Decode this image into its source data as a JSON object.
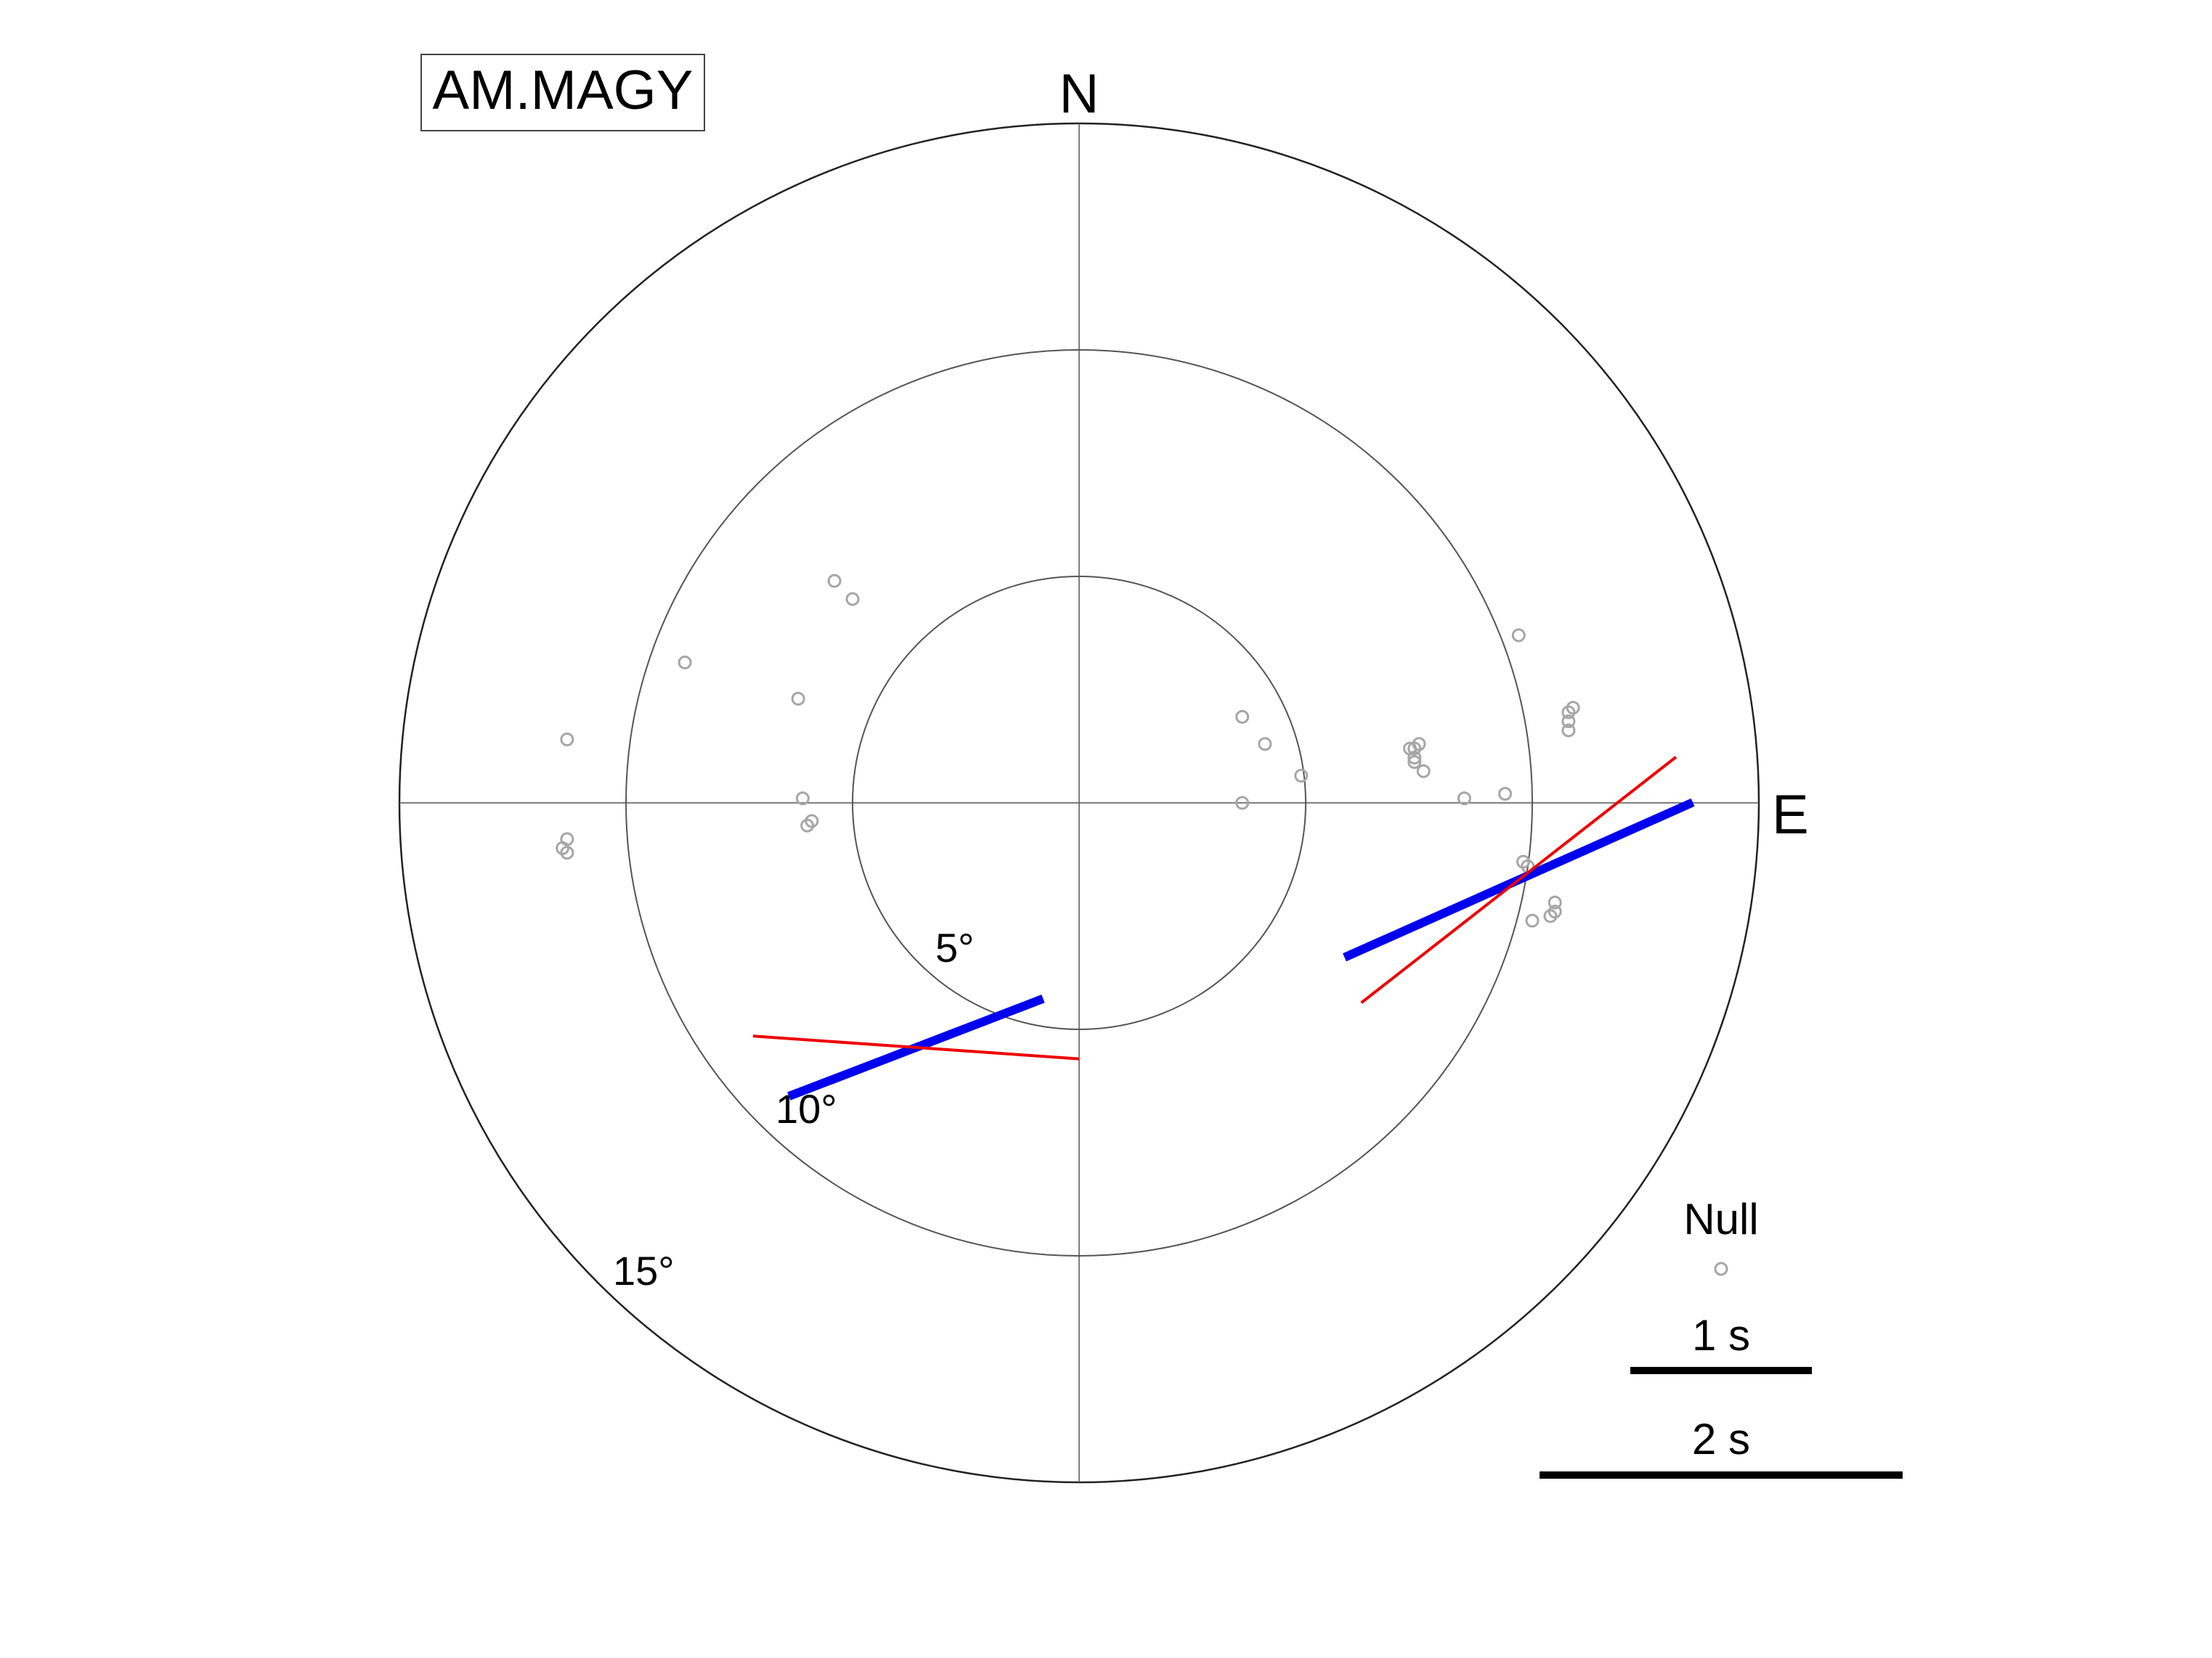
{
  "chart_data": {
    "type": "scatter",
    "title": "AM.MAGY",
    "projection": "polar",
    "directions": {
      "north": "N",
      "east": "E"
    },
    "rings": [
      {
        "value": 5,
        "label": "5°"
      },
      {
        "value": 10,
        "label": "10°"
      },
      {
        "value": 15,
        "label": "15°"
      }
    ],
    "r_max": 15,
    "null_points": [
      {
        "x": 3.6,
        "y": 1.9
      },
      {
        "x": 4.1,
        "y": 1.3
      },
      {
        "x": 4.9,
        "y": 0.6
      },
      {
        "x": 3.6,
        "y": 0.0
      },
      {
        "x": 7.4,
        "y": 1.2
      },
      {
        "x": 7.5,
        "y": 1.3
      },
      {
        "x": 7.3,
        "y": 1.2
      },
      {
        "x": 7.4,
        "y": 0.9
      },
      {
        "x": 7.6,
        "y": 0.7
      },
      {
        "x": 7.4,
        "y": 1.0
      },
      {
        "x": 8.5,
        "y": 0.1
      },
      {
        "x": 9.4,
        "y": 0.2
      },
      {
        "x": 9.7,
        "y": 3.7
      },
      {
        "x": 10.8,
        "y": 2.0
      },
      {
        "x": 10.9,
        "y": 2.1
      },
      {
        "x": 10.8,
        "y": 1.8
      },
      {
        "x": 10.8,
        "y": 1.6
      },
      {
        "x": 9.8,
        "y": -1.3
      },
      {
        "x": 9.9,
        "y": -1.4
      },
      {
        "x": 10.5,
        "y": -2.2
      },
      {
        "x": 10.5,
        "y": -2.4
      },
      {
        "x": 10.4,
        "y": -2.5
      },
      {
        "x": 10.0,
        "y": -2.6
      },
      {
        "x": -5.4,
        "y": 4.9
      },
      {
        "x": -5.0,
        "y": 4.5
      },
      {
        "x": -8.7,
        "y": 3.1
      },
      {
        "x": -6.2,
        "y": 2.3
      },
      {
        "x": -11.3,
        "y": 1.4
      },
      {
        "x": -6.1,
        "y": 0.1
      },
      {
        "x": -6.0,
        "y": -0.5
      },
      {
        "x": -5.9,
        "y": -0.4
      },
      {
        "x": -11.3,
        "y": -0.8
      },
      {
        "x": -11.4,
        "y": -1.0
      },
      {
        "x": -11.3,
        "y": -1.1
      }
    ],
    "splitting": [
      {
        "x": -3.6,
        "y": -5.4,
        "observed": {
          "azimuth": 69,
          "delay_s": 1.5,
          "color": "#0000ee"
        },
        "predicted": {
          "azimuth": 94,
          "delay_s": 1.8,
          "color": "#ee0000"
        }
      },
      {
        "x": 9.7,
        "y": -1.7,
        "observed": {
          "azimuth": 66,
          "delay_s": 2.1,
          "color": "#0000ee"
        },
        "predicted": {
          "azimuth": 52,
          "delay_s": 2.2,
          "color": "#ee0000"
        }
      }
    ],
    "legend": {
      "position": "bottom-right",
      "null_label": "Null",
      "scales": [
        {
          "label": "1 s",
          "seconds": 1
        },
        {
          "label": "2 s",
          "seconds": 2
        }
      ]
    },
    "colors": {
      "null_marker": "#a6a6a6",
      "observed": "#0000ee",
      "predicted": "#ee0000"
    }
  }
}
